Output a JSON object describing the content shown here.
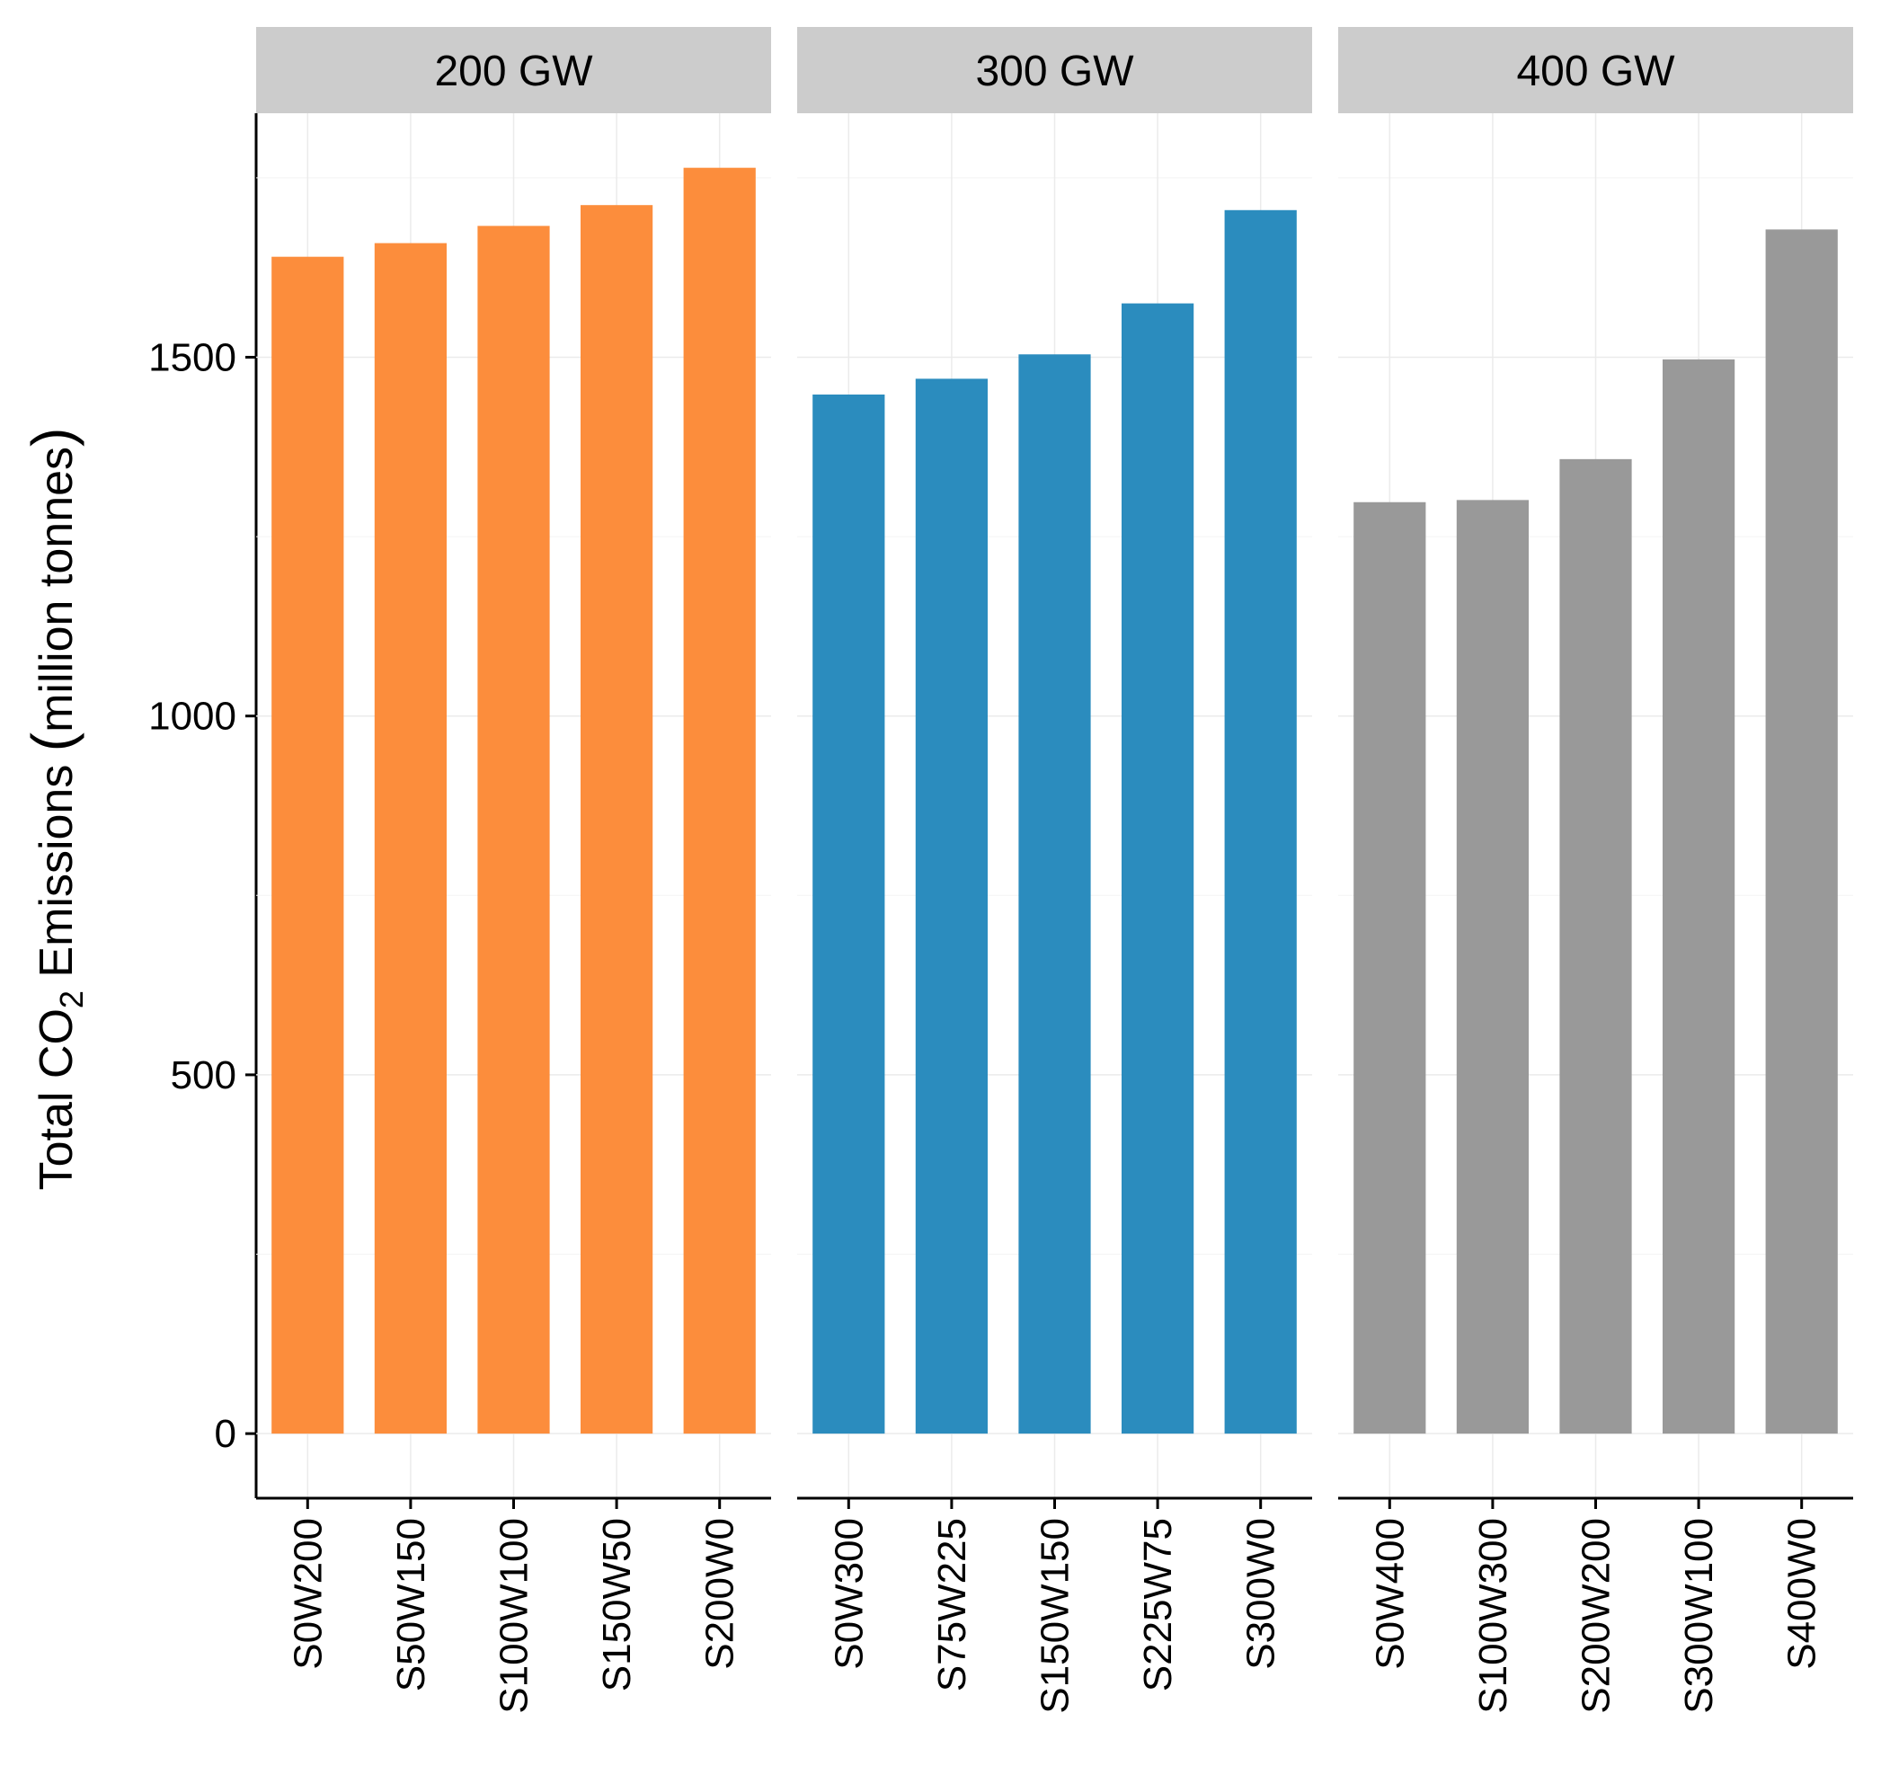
{
  "chart_data": {
    "type": "bar",
    "ylabel_parts": [
      "Total CO",
      "2",
      " Emissions ",
      "(",
      "million tonnes",
      ")"
    ],
    "ylim": [
      -90,
      1840
    ],
    "y_ticks": [
      0,
      500,
      1000,
      1500
    ],
    "grid": true,
    "panels": [
      {
        "title": "200 GW",
        "color": "#FC8D3C",
        "categories": [
          "S0W200",
          "S50W150",
          "S100W100",
          "S150W50",
          "S200W0"
        ],
        "values": [
          1640,
          1659,
          1683,
          1712,
          1764
        ]
      },
      {
        "title": "300 GW",
        "color": "#2B8CBE",
        "categories": [
          "S0W300",
          "S75W225",
          "S150W150",
          "S225W75",
          "S300W0"
        ],
        "values": [
          1448,
          1470,
          1504,
          1575,
          1705
        ]
      },
      {
        "title": "400 GW",
        "color": "#999999",
        "categories": [
          "S0W400",
          "S100W300",
          "S200W200",
          "S300W100",
          "S400W0"
        ],
        "values": [
          1298,
          1301,
          1358,
          1497,
          1678
        ]
      }
    ]
  }
}
